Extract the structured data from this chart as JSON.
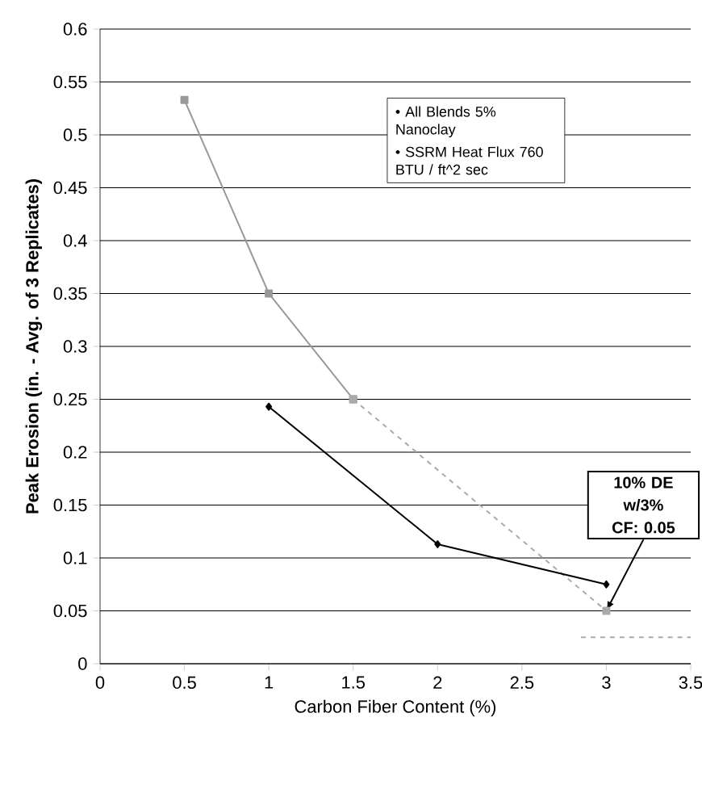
{
  "chart_data": {
    "type": "line",
    "xlabel": "Carbon Fiber Content (%)",
    "ylabel": "Peak Erosion (in. - Avg. of 3 Replicates)",
    "xlim": [
      0,
      3.5
    ],
    "xticks": [
      0,
      0.5,
      1,
      1.5,
      2,
      2.5,
      3,
      3.5
    ],
    "ylim": [
      0,
      0.6
    ],
    "yticks": [
      0,
      0.05,
      0.1,
      0.15,
      0.2,
      0.25,
      0.3,
      0.35,
      0.4,
      0.45,
      0.5,
      0.55,
      0.6
    ],
    "grid": "y",
    "series": [
      {
        "x": [
          0.5,
          1,
          1.5
        ],
        "values": [
          0.533,
          0.35,
          0.25
        ],
        "color": "#999999",
        "marker": "square",
        "line_style": "solid"
      },
      {
        "x": [
          1.5,
          3
        ],
        "values": [
          0.25,
          0.05
        ],
        "color": "#aaaaaa",
        "marker": "square",
        "line_style": "dashed"
      },
      {
        "x": [
          1,
          2,
          3
        ],
        "values": [
          0.243,
          0.113,
          0.075
        ],
        "color": "#000000",
        "marker": "diamond",
        "line_style": "solid"
      },
      {
        "x": [
          2.85,
          3.5
        ],
        "values": [
          0.025,
          0.025
        ],
        "color": "#aaaaaa",
        "marker": "none",
        "line_style": "dashed"
      }
    ],
    "annotations": [
      "• All Blends 5% Nanoclay",
      "• SSRM Heat Flux 760 BTU / ft^2 sec",
      {
        "text": "10% DE w/3% CF: 0.05",
        "x": 3,
        "y": 0.05
      }
    ]
  }
}
